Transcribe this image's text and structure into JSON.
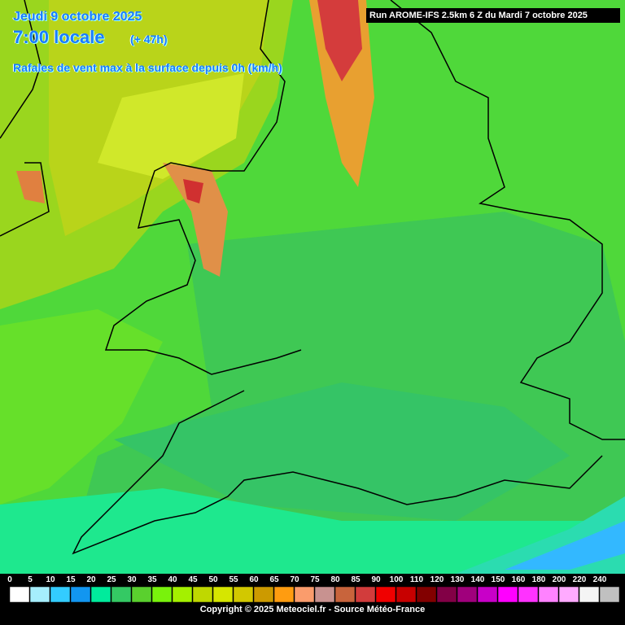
{
  "header": {
    "date": "Jeudi 9 octobre 2025",
    "time": "7:00 locale",
    "lead": "(+ 47h)",
    "parameter": "Rafales de vent max à la surface depuis 0h (km/h)",
    "run": "Run AROME-IFS 2.5km 6 Z du Mardi 7 octobre 2025"
  },
  "legend": {
    "labels": [
      0,
      5,
      10,
      15,
      20,
      25,
      30,
      35,
      40,
      45,
      50,
      55,
      60,
      65,
      70,
      75,
      80,
      85,
      90,
      100,
      110,
      120,
      130,
      140,
      150,
      160,
      180,
      200,
      220,
      240
    ],
    "colors": [
      "#ffffff",
      "#a6eefc",
      "#33ccff",
      "#1296f0",
      "#00eb9c",
      "#34c964",
      "#5ad02e",
      "#79f20c",
      "#a4f000",
      "#bfd800",
      "#d6e600",
      "#d2c800",
      "#cc9a00",
      "#ff9c10",
      "#fa9c6c",
      "#c89290",
      "#c8643c",
      "#d23c3c",
      "#f00000",
      "#c80000",
      "#820000",
      "#820046",
      "#a0007c",
      "#c800c8",
      "#ff00ff",
      "#ff32ff",
      "#ff82ff",
      "#ffaaff",
      "#f4f4f4",
      "#c0c0c0"
    ]
  },
  "footer": {
    "copyright": "Copyright © 2025 Meteociel.fr - Source Météo-France"
  }
}
